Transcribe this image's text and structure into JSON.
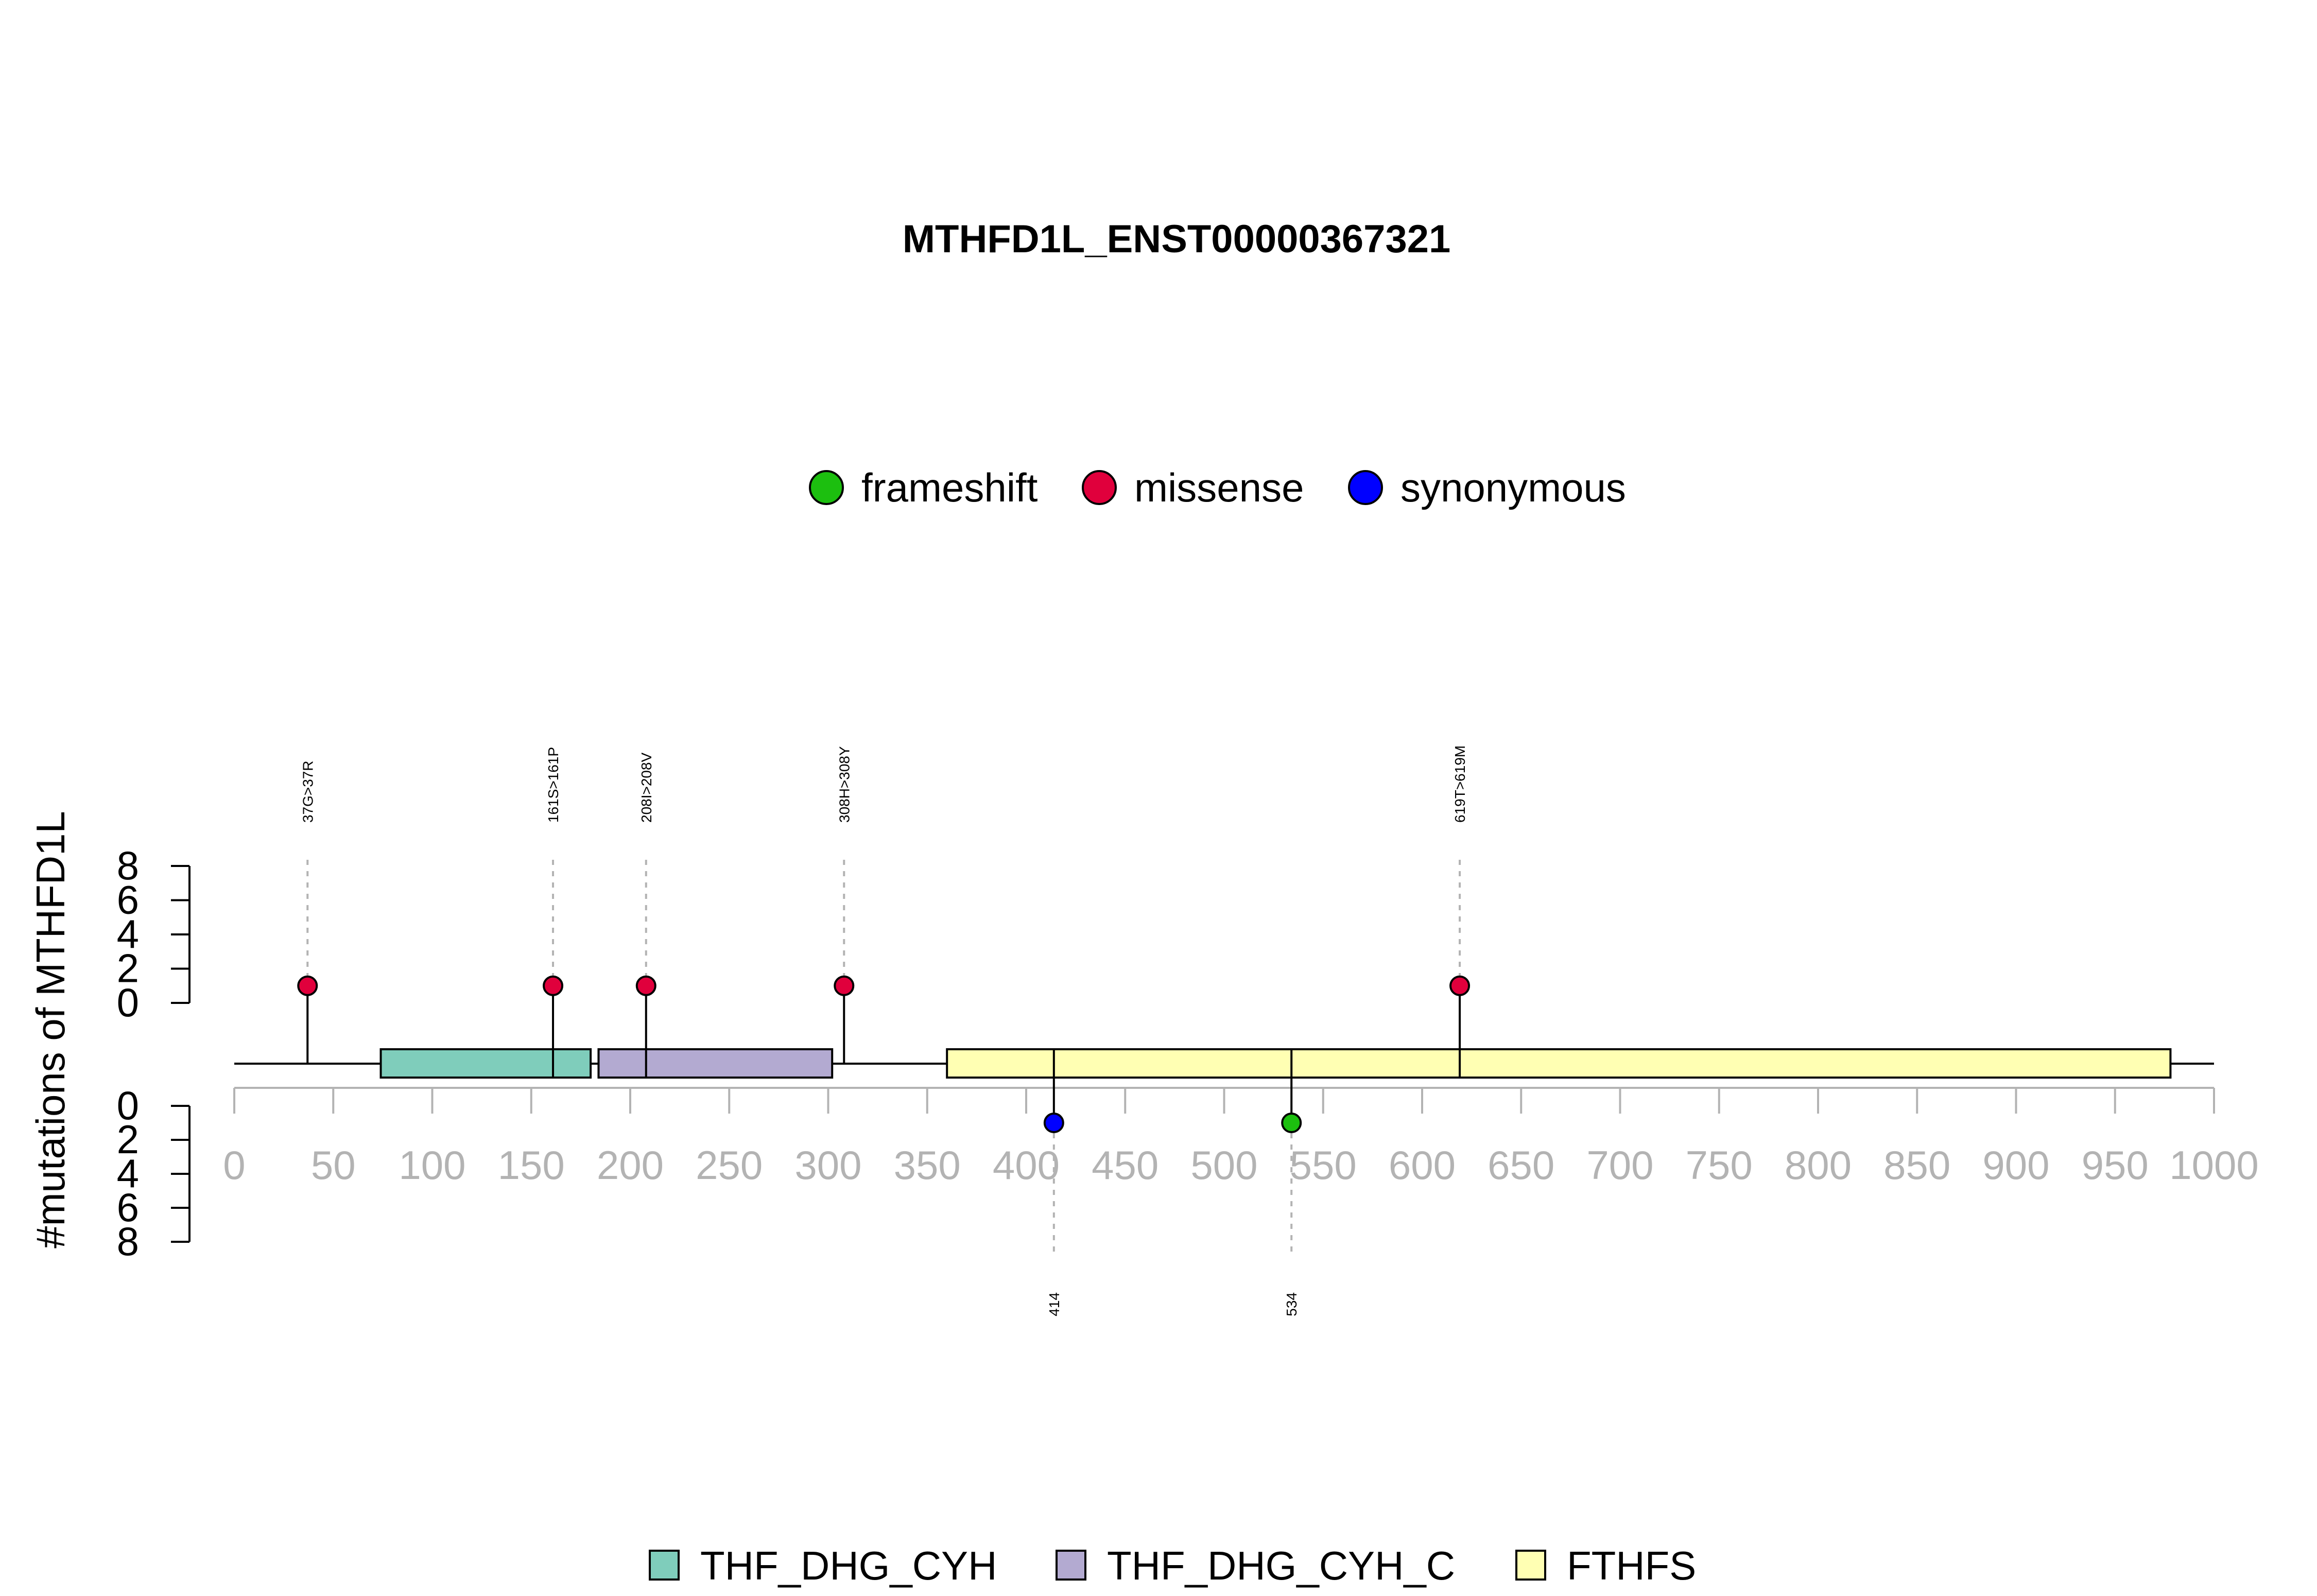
{
  "chart_data": {
    "type": "lollipop",
    "title": "MTHFD1L_ENST00000367321",
    "ylabel": "#mutations of MTHFD1L",
    "xlim": [
      0,
      1000
    ],
    "x_ticks": [
      0,
      50,
      100,
      150,
      200,
      250,
      300,
      350,
      400,
      450,
      500,
      550,
      600,
      650,
      700,
      750,
      800,
      850,
      900,
      950,
      1000
    ],
    "y_ticks": [
      0,
      2,
      4,
      6,
      8
    ],
    "ylim": [
      0,
      8
    ],
    "legend_mutation": [
      {
        "label": "frameshift",
        "color": "#1cbf0f"
      },
      {
        "label": "missense",
        "color": "#e0003c"
      },
      {
        "label": "synonymous",
        "color": "#0000ff"
      }
    ],
    "legend_domain": [
      {
        "label": "THF_DHG_CYH",
        "color": "#7fcdbb"
      },
      {
        "label": "THF_DHG_CYH_C",
        "color": "#b3aad1"
      },
      {
        "label": "FTHFS",
        "color": "#ffffb3"
      }
    ],
    "domains": [
      {
        "name": "THF_DHG_CYH",
        "start": 74,
        "end": 180,
        "color": "#7fcdbb"
      },
      {
        "name": "THF_DHG_CYH_C",
        "start": 184,
        "end": 302,
        "color": "#b3aad1"
      },
      {
        "name": "FTHFS",
        "start": 360,
        "end": 978,
        "color": "#ffffb3"
      }
    ],
    "mutations": [
      {
        "pos": 37,
        "count": 1,
        "type": "missense",
        "side": "top",
        "label": "37G>37R"
      },
      {
        "pos": 161,
        "count": 1,
        "type": "missense",
        "side": "top",
        "label": "161S>161P"
      },
      {
        "pos": 208,
        "count": 1,
        "type": "missense",
        "side": "top",
        "label": "208I>208V"
      },
      {
        "pos": 308,
        "count": 1,
        "type": "missense",
        "side": "top",
        "label": "308H>308Y"
      },
      {
        "pos": 619,
        "count": 1,
        "type": "missense",
        "side": "top",
        "label": "619T>619M"
      },
      {
        "pos": 414,
        "count": 1,
        "type": "synonymous",
        "side": "bottom",
        "label": "414"
      },
      {
        "pos": 534,
        "count": 1,
        "type": "frameshift",
        "side": "bottom",
        "label": "534"
      }
    ]
  }
}
